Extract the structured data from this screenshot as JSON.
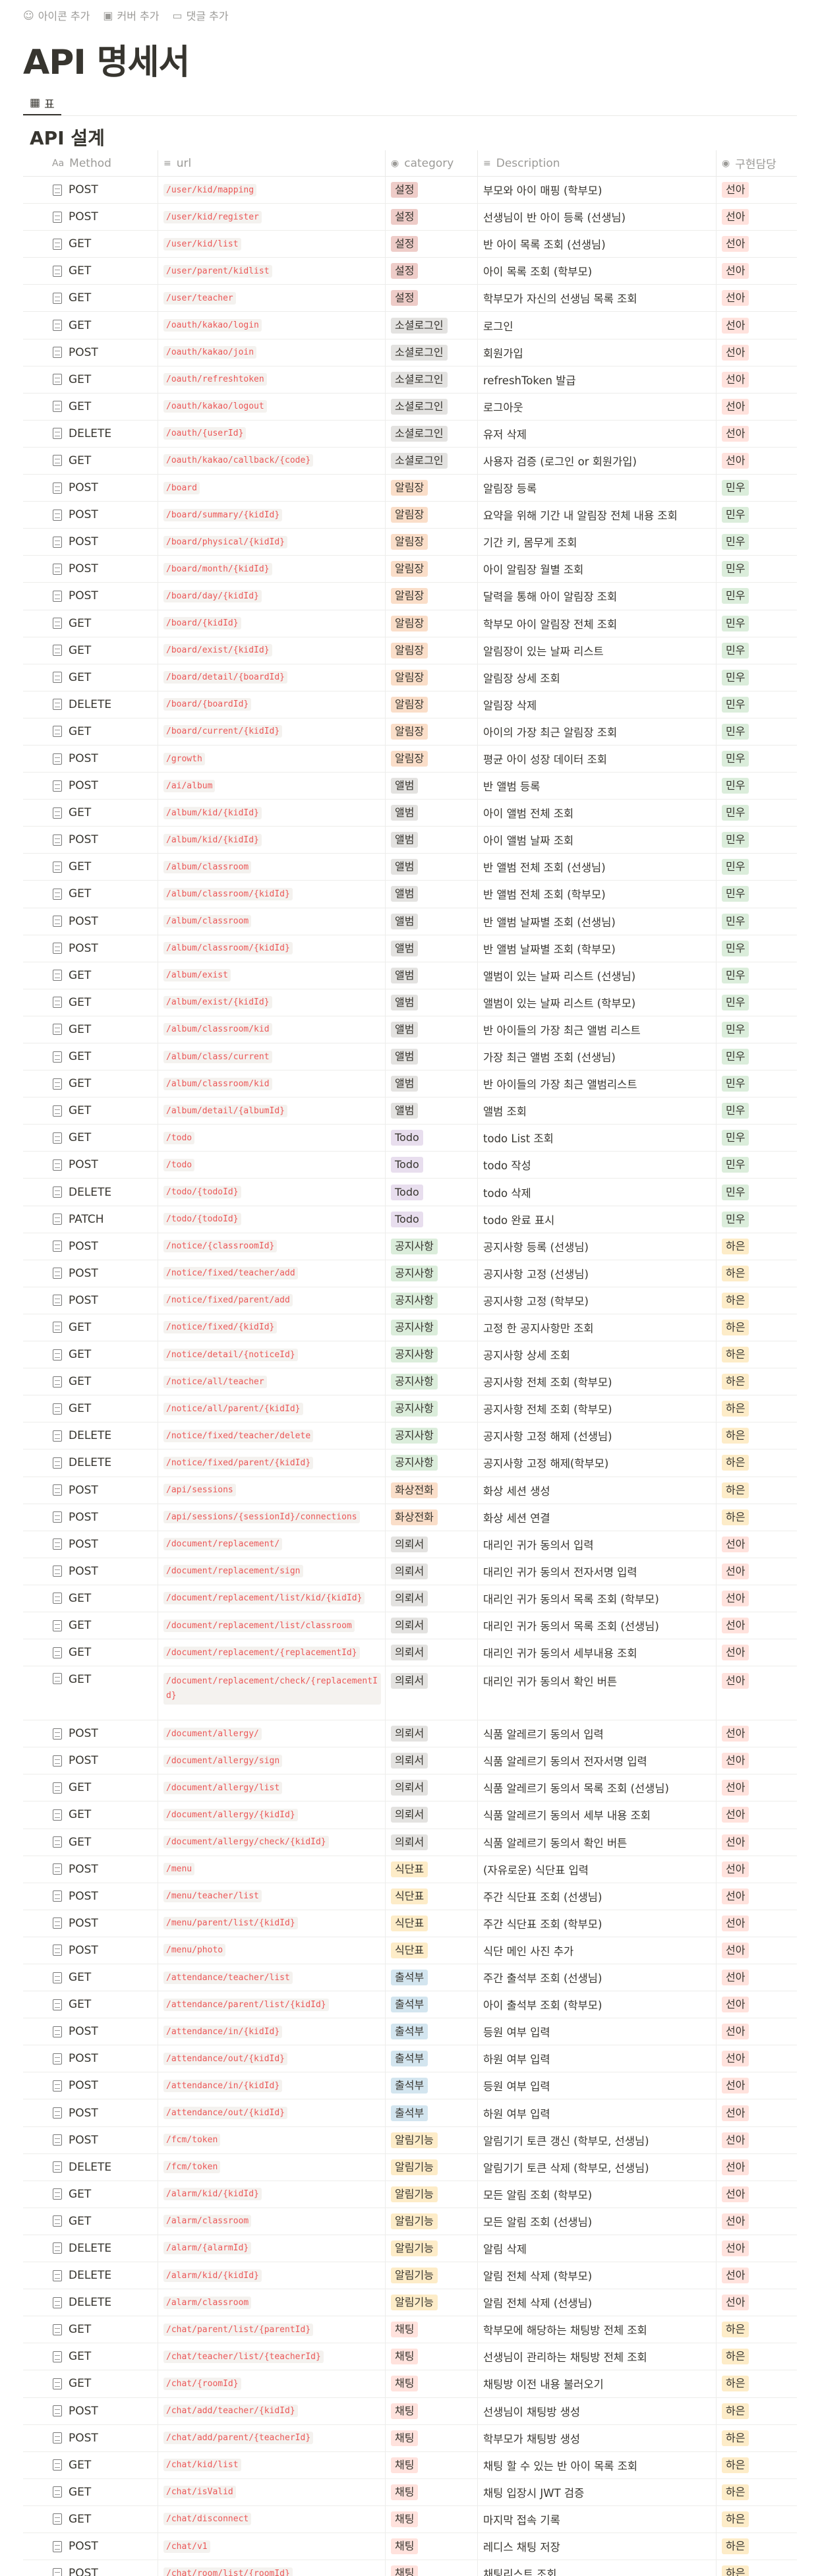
{
  "top_actions": {
    "add_icon": "아이콘 추가",
    "add_cover": "커버 추가",
    "add_comment": "댓글 추가"
  },
  "page_title": "API 명세서",
  "view_tab": "표",
  "section_title": "API 설계",
  "columns": {
    "method": "Method",
    "url": "url",
    "category": "category",
    "description": "Description",
    "owner": "구현담당"
  },
  "colors": {
    "category": {
      "설정": "#eeccc8",
      "소셜로그인": "#e3e2e0",
      "알림장": "#fadec9",
      "앨범": "#e3e2e0",
      "Todo": "#e8deee",
      "공지사항": "#dbeddb",
      "화상전화": "#fadec9",
      "의뢰서": "#e3e2e0",
      "식단표": "#fdecc8",
      "출석부": "#d3e5ef",
      "알림기능": "#fdecc8",
      "채팅": "#ffe2dd"
    },
    "owner": {
      "선아": "#ffe2dd",
      "민우": "#dbeddb",
      "하은": "#fdecc8"
    }
  },
  "rows": [
    {
      "method": "POST",
      "url": "/user/kid/mapping",
      "category": "설정",
      "desc": "부모와 아이 매핑 (학부모)",
      "owner": "선아"
    },
    {
      "method": "POST",
      "url": "/user/kid/register",
      "category": "설정",
      "desc": "선생님이 반 아이 등록 (선생님)",
      "owner": "선아"
    },
    {
      "method": "GET",
      "url": "/user/kid/list",
      "category": "설정",
      "desc": "반 아이 목록 조회 (선생님)",
      "owner": "선아"
    },
    {
      "method": "GET",
      "url": "/user/parent/kidlist",
      "category": "설정",
      "desc": "아이 목록 조회 (학부모)",
      "owner": "선아"
    },
    {
      "method": "GET",
      "url": "/user/teacher",
      "category": "설정",
      "desc": "학부모가 자신의 선생님 목록 조회",
      "owner": "선아"
    },
    {
      "method": "GET",
      "url": "/oauth/kakao/login",
      "category": "소셜로그인",
      "desc": "로그인",
      "owner": "선아"
    },
    {
      "method": "POST",
      "url": "/oauth/kakao/join",
      "category": "소셜로그인",
      "desc": "회원가입",
      "owner": "선아"
    },
    {
      "method": "GET",
      "url": "/oauth/refreshtoken",
      "category": "소셜로그인",
      "desc": "refreshToken 발급",
      "owner": "선아"
    },
    {
      "method": "GET",
      "url": "/oauth/kakao/logout",
      "category": "소셜로그인",
      "desc": "로그아웃",
      "owner": "선아"
    },
    {
      "method": "DELETE",
      "url": "/oauth/{userId}",
      "category": "소셜로그인",
      "desc": "유저 삭제",
      "owner": "선아"
    },
    {
      "method": "GET",
      "url": "/oauth/kakao/callback/{code}",
      "category": "소셜로그인",
      "desc": "사용자 검증 (로그인 or 회원가입)",
      "owner": "선아"
    },
    {
      "method": "POST",
      "url": "/board",
      "category": "알림장",
      "desc": "알림장 등록",
      "owner": "민우"
    },
    {
      "method": "POST",
      "url": "/board/summary/{kidId}",
      "category": "알림장",
      "desc": "요약을 위해 기간 내 알림장 전체 내용 조회",
      "owner": "민우"
    },
    {
      "method": "POST",
      "url": "/board/physical/{kidId}",
      "category": "알림장",
      "desc": "기간 키, 몸무게 조회",
      "owner": "민우"
    },
    {
      "method": "POST",
      "url": "/board/month/{kidId}",
      "category": "알림장",
      "desc": "아이 알림장 월별 조회",
      "owner": "민우"
    },
    {
      "method": "POST",
      "url": "/board/day/{kidId}",
      "category": "알림장",
      "desc": "달력을 통해 아이 알림장 조회",
      "owner": "민우"
    },
    {
      "method": "GET",
      "url": "/board/{kidId}",
      "category": "알림장",
      "desc": "학부모 아이 알림장 전체 조회",
      "owner": "민우"
    },
    {
      "method": "GET",
      "url": "/board/exist/{kidId}",
      "category": "알림장",
      "desc": "알림장이 있는 날짜 리스트",
      "owner": "민우"
    },
    {
      "method": "GET",
      "url": "/board/detail/{boardId}",
      "category": "알림장",
      "desc": "알림장 상세 조회",
      "owner": "민우"
    },
    {
      "method": "DELETE",
      "url": "/board/{boardId}",
      "category": "알림장",
      "desc": "알림장 삭제",
      "owner": "민우"
    },
    {
      "method": "GET",
      "url": "/board/current/{kidId}",
      "category": "알림장",
      "desc": "아이의 가장 최근 알림장 조회",
      "owner": "민우"
    },
    {
      "method": "POST",
      "url": "/growth",
      "category": "알림장",
      "desc": "평균 아이 성장 데이터 조회",
      "owner": "민우"
    },
    {
      "method": "POST",
      "url": "/ai/album",
      "category": "앨범",
      "desc": "반 앨범 등록",
      "owner": "민우"
    },
    {
      "method": "GET",
      "url": "/album/kid/{kidId}",
      "category": "앨범",
      "desc": "아이 앨범 전체 조회",
      "owner": "민우"
    },
    {
      "method": "POST",
      "url": "/album/kid/{kidId}",
      "category": "앨범",
      "desc": "아이 앨범 날짜 조회",
      "owner": "민우"
    },
    {
      "method": "GET",
      "url": "/album/classroom",
      "category": "앨범",
      "desc": "반 앨범 전체 조회 (선생님)",
      "owner": "민우"
    },
    {
      "method": "GET",
      "url": "/album/classroom/{kidId}",
      "category": "앨범",
      "desc": "반 앨범 전체 조회 (학부모)",
      "owner": "민우"
    },
    {
      "method": "POST",
      "url": "/album/classroom",
      "category": "앨범",
      "desc": "반 앨범 날짜별 조회 (선생님)",
      "owner": "민우"
    },
    {
      "method": "POST",
      "url": "/album/classroom/{kidId}",
      "category": "앨범",
      "desc": "반 앨범 날짜별 조회 (학부모)",
      "owner": "민우"
    },
    {
      "method": "GET",
      "url": "/album/exist",
      "category": "앨범",
      "desc": "앨범이 있는 날짜 리스트 (선생님)",
      "owner": "민우"
    },
    {
      "method": "GET",
      "url": "/album/exist/{kidId}",
      "category": "앨범",
      "desc": "앨범이 있는 날짜 리스트 (학부모)",
      "owner": "민우"
    },
    {
      "method": "GET",
      "url": "/album/classroom/kid",
      "category": "앨범",
      "desc": "반 아이들의 가장 최근 앨범 리스트",
      "owner": "민우"
    },
    {
      "method": "GET",
      "url": "/album/class/current",
      "category": "앨범",
      "desc": "가장 최근 앨범 조회 (선생님)",
      "owner": "민우"
    },
    {
      "method": "GET",
      "url": "/album/classroom/kid",
      "category": "앨범",
      "desc": "반 아이들의 가장 최근 앨범리스트",
      "owner": "민우"
    },
    {
      "method": "GET",
      "url": "/album/detail/{albumId}",
      "category": "앨범",
      "desc": "앨범 조회",
      "owner": "민우"
    },
    {
      "method": "GET",
      "url": "/todo",
      "category": "Todo",
      "desc": "todo List 조회",
      "owner": "민우"
    },
    {
      "method": "POST",
      "url": "/todo",
      "category": "Todo",
      "desc": "todo 작성",
      "owner": "민우"
    },
    {
      "method": "DELETE",
      "url": "/todo/{todoId}",
      "category": "Todo",
      "desc": "todo 삭제",
      "owner": "민우"
    },
    {
      "method": "PATCH",
      "url": "/todo/{todoId}",
      "category": "Todo",
      "desc": "todo 완료 표시",
      "owner": "민우"
    },
    {
      "method": "POST",
      "url": "/notice/{classroomId}",
      "category": "공지사항",
      "desc": "공지사항 등록 (선생님)",
      "owner": "하은"
    },
    {
      "method": "POST",
      "url": "/notice/fixed/teacher/add",
      "category": "공지사항",
      "desc": "공지사항 고정 (선생님)",
      "owner": "하은"
    },
    {
      "method": "POST",
      "url": "/notice/fixed/parent/add",
      "category": "공지사항",
      "desc": "공지사항 고정 (학부모)",
      "owner": "하은"
    },
    {
      "method": "GET",
      "url": "/notice/fixed/{kidId}",
      "category": "공지사항",
      "desc": "고정 한 공지사항만 조회",
      "owner": "하은"
    },
    {
      "method": "GET",
      "url": "/notice/detail/{noticeId}",
      "category": "공지사항",
      "desc": "공지사항 상세 조회",
      "owner": "하은"
    },
    {
      "method": "GET",
      "url": "/notice/all/teacher",
      "category": "공지사항",
      "desc": "공지사항 전체 조회 (학부모)",
      "owner": "하은"
    },
    {
      "method": "GET",
      "url": "/notice/all/parent/{kidId}",
      "category": "공지사항",
      "desc": "공지사항 전체 조회 (학부모)",
      "owner": "하은"
    },
    {
      "method": "DELETE",
      "url": "/notice/fixed/teacher/delete",
      "category": "공지사항",
      "desc": "공지사항 고정 해제 (선생님)",
      "owner": "하은"
    },
    {
      "method": "DELETE",
      "url": "/notice/fixed/parent/{kidId}",
      "category": "공지사항",
      "desc": "공지사항 고정 해제(학부모)",
      "owner": "하은"
    },
    {
      "method": "POST",
      "url": "/api/sessions",
      "category": "화상전화",
      "desc": "화상 세션 생성",
      "owner": "하은"
    },
    {
      "method": "POST",
      "url": "/api/sessions/{sessionId}/connections",
      "category": "화상전화",
      "desc": "화상 세션 연결",
      "owner": "하은"
    },
    {
      "method": "POST",
      "url": "/document/replacement/",
      "category": "의뢰서",
      "desc": "대리인 귀가 동의서 입력",
      "owner": "선아"
    },
    {
      "method": "POST",
      "url": "/document/replacement/sign",
      "category": "의뢰서",
      "desc": "대리인 귀가 동의서 전자서명 입력",
      "owner": "선아"
    },
    {
      "method": "GET",
      "url": "/document/replacement/list/kid/{kidId}",
      "category": "의뢰서",
      "desc": "대리인 귀가 동의서 목록 조회 (학부모)",
      "owner": "선아"
    },
    {
      "method": "GET",
      "url": "/document/replacement/list/classroom",
      "category": "의뢰서",
      "desc": "대리인 귀가 동의서 목록 조회 (선생님)",
      "owner": "선아"
    },
    {
      "method": "GET",
      "url": "/document/replacement/{replacementId}",
      "category": "의뢰서",
      "desc": "대리인 귀가 동의서 세부내용 조회",
      "owner": "선아"
    },
    {
      "method": "GET",
      "url": "/document/replacement/check/{replacementId}",
      "category": "의뢰서",
      "desc": "대리인 귀가 동의서 확인 버튼",
      "owner": "선아",
      "tall": true
    },
    {
      "method": "POST",
      "url": "/document/allergy/",
      "category": "의뢰서",
      "desc": "식품 알레르기 동의서 입력",
      "owner": "선아"
    },
    {
      "method": "POST",
      "url": "/document/allergy/sign",
      "category": "의뢰서",
      "desc": "식품 알레르기 동의서 전자서명 입력",
      "owner": "선아"
    },
    {
      "method": "GET",
      "url": "/document/allergy/list",
      "category": "의뢰서",
      "desc": "식품 알레르기 동의서 목록 조회 (선생님)",
      "owner": "선아"
    },
    {
      "method": "GET",
      "url": "/document/allergy/{kidId}",
      "category": "의뢰서",
      "desc": "식품 알레르기 동의서 세부 내용 조회",
      "owner": "선아"
    },
    {
      "method": "GET",
      "url": "/document/allergy/check/{kidId}",
      "category": "의뢰서",
      "desc": "식품 알레르기 동의서 확인 버튼",
      "owner": "선아"
    },
    {
      "method": "POST",
      "url": "/menu",
      "category": "식단표",
      "desc": "(자유로운) 식단표 입력",
      "owner": "선아"
    },
    {
      "method": "POST",
      "url": "/menu/teacher/list",
      "category": "식단표",
      "desc": "주간 식단표 조회 (선생님)",
      "owner": "선아"
    },
    {
      "method": "POST",
      "url": "/menu/parent/list/{kidId}",
      "category": "식단표",
      "desc": "주간 식단표 조회 (학부모)",
      "owner": "선아"
    },
    {
      "method": "POST",
      "url": "/menu/photo",
      "category": "식단표",
      "desc": "식단 메인 사진 추가",
      "owner": "선아"
    },
    {
      "method": "GET",
      "url": "/attendance/teacher/list",
      "category": "출석부",
      "desc": "주간 출석부 조회 (선생님)",
      "owner": "선아"
    },
    {
      "method": "GET",
      "url": "/attendance/parent/list/{kidId}",
      "category": "출석부",
      "desc": "아이 출석부 조회 (학부모)",
      "owner": "선아"
    },
    {
      "method": "POST",
      "url": "/attendance/in/{kidId}",
      "category": "출석부",
      "desc": "등원 여부 입력",
      "owner": "선아"
    },
    {
      "method": "POST",
      "url": "/attendance/out/{kidId}",
      "category": "출석부",
      "desc": "하원 여부 입력",
      "owner": "선아"
    },
    {
      "method": "POST",
      "url": "/attendance/in/{kidId}",
      "category": "출석부",
      "desc": "등원 여부 입력",
      "owner": "선아"
    },
    {
      "method": "POST",
      "url": "/attendance/out/{kidId}",
      "category": "출석부",
      "desc": "하원 여부 입력",
      "owner": "선아"
    },
    {
      "method": "POST",
      "url": "/fcm/token",
      "category": "알림기능",
      "desc": "알림기기 토큰 갱신 (학부모, 선생님)",
      "owner": "선아"
    },
    {
      "method": "DELETE",
      "url": "/fcm/token",
      "category": "알림기능",
      "desc": "알림기기 토큰 삭제 (학부모, 선생님)",
      "owner": "선아"
    },
    {
      "method": "GET",
      "url": "/alarm/kid/{kidId}",
      "category": "알림기능",
      "desc": "모든 알림 조회 (학부모)",
      "owner": "선아"
    },
    {
      "method": "GET",
      "url": "/alarm/classroom",
      "category": "알림기능",
      "desc": "모든 알림 조회 (선생님)",
      "owner": "선아"
    },
    {
      "method": "DELETE",
      "url": "/alarm/{alarmId}",
      "category": "알림기능",
      "desc": "알림 삭제",
      "owner": "선아"
    },
    {
      "method": "DELETE",
      "url": "/alarm/kid/{kidId}",
      "category": "알림기능",
      "desc": "알림 전체 삭제 (학부모)",
      "owner": "선아"
    },
    {
      "method": "DELETE",
      "url": "/alarm/classroom",
      "category": "알림기능",
      "desc": "알림 전체 삭제 (선생님)",
      "owner": "선아"
    },
    {
      "method": "GET",
      "url": "/chat/parent/list/{parentId}",
      "category": "채팅",
      "desc": "학부모에 해당하는 채팅방 전체 조회",
      "owner": "하은"
    },
    {
      "method": "GET",
      "url": "/chat/teacher/list/{teacherId}",
      "category": "채팅",
      "desc": "선생님이 관리하는 채팅방 전체 조회",
      "owner": "하은"
    },
    {
      "method": "GET",
      "url": "/chat/{roomId}",
      "category": "채팅",
      "desc": "채팅방 이전 내용 불러오기",
      "owner": "하은"
    },
    {
      "method": "POST",
      "url": "/chat/add/teacher/{kidId}",
      "category": "채팅",
      "desc": "선생님이 채팅방 생성",
      "owner": "하은"
    },
    {
      "method": "POST",
      "url": "/chat/add/parent/{teacherId}",
      "category": "채팅",
      "desc": "학부모가 채팅방 생성",
      "owner": "하은"
    },
    {
      "method": "GET",
      "url": "/chat/kid/list",
      "category": "채팅",
      "desc": "채팅 할 수 있는 반 아이 목록 조회",
      "owner": "하은"
    },
    {
      "method": "GET",
      "url": "/chat/isValid",
      "category": "채팅",
      "desc": "채팅 입장시 JWT 검증",
      "owner": "하은"
    },
    {
      "method": "GET",
      "url": "/chat/disconnect",
      "category": "채팅",
      "desc": "마지막 접속 기록",
      "owner": "하은"
    },
    {
      "method": "POST",
      "url": "/chat/v1",
      "category": "채팅",
      "desc": "레디스 채팅 저장",
      "owner": "하은"
    },
    {
      "method": "POST",
      "url": "/chat/room/list/{roomId}",
      "category": "채팅",
      "desc": "채팅리스트 조회",
      "owner": "하은"
    }
  ]
}
